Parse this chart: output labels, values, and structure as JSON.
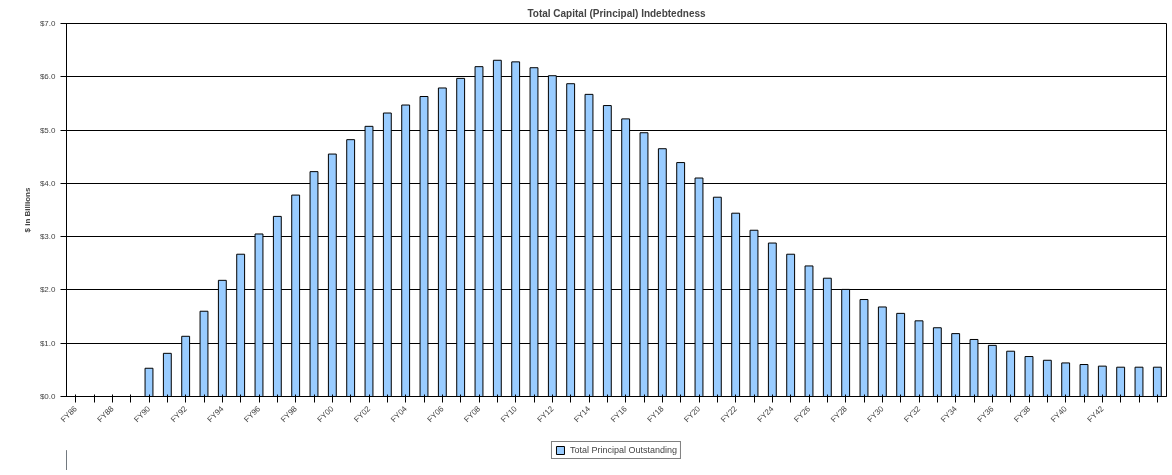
{
  "chart_data": {
    "type": "bar",
    "title": "Total Capital (Principal) Indebtedness",
    "ylabel": "$ in Billions",
    "categories": [
      "FY86",
      null,
      "FY88",
      null,
      "FY90",
      null,
      "FY92",
      null,
      "FY94",
      null,
      "FY96",
      null,
      "FY98",
      null,
      "FY00",
      null,
      "FY02",
      null,
      "FY04",
      null,
      "FY06",
      null,
      "FY08",
      null,
      "FY10",
      null,
      "FY12",
      null,
      "FY14",
      null,
      "FY16",
      null,
      "FY18",
      null,
      "FY20",
      null,
      "FY22",
      null,
      "FY24",
      null,
      "FY26",
      null,
      "FY28",
      null,
      "FY30",
      null,
      "FY32",
      null,
      "FY34",
      null,
      "FY36",
      null,
      "FY38",
      null,
      "FY40",
      null,
      "FY42",
      null,
      null,
      null
    ],
    "series": [
      {
        "name": "Total Principal Outstanding",
        "color": "#99ccff",
        "values": [
          null,
          null,
          null,
          null,
          0.53,
          0.81,
          1.13,
          1.6,
          2.18,
          2.67,
          3.05,
          3.38,
          3.78,
          4.22,
          4.55,
          4.82,
          5.07,
          5.32,
          5.47,
          5.63,
          5.79,
          5.97,
          6.19,
          6.31,
          6.28,
          6.17,
          6.02,
          5.87,
          5.67,
          5.46,
          5.21,
          4.95,
          4.65,
          4.39,
          4.1,
          3.74,
          3.44,
          3.12,
          2.88,
          2.67,
          2.45,
          2.22,
          2.01,
          1.82,
          1.68,
          1.56,
          1.42,
          1.29,
          1.18,
          1.07,
          0.96,
          0.85,
          0.75,
          0.68,
          0.63,
          0.6,
          0.57,
          0.55,
          0.55,
          0.55
        ]
      }
    ],
    "ylim": [
      0,
      7
    ],
    "yticks": [
      {
        "value": 0,
        "label": "$0.0"
      },
      {
        "value": 1,
        "label": "$1.0"
      },
      {
        "value": 2,
        "label": "$2.0"
      },
      {
        "value": 3,
        "label": "$3.0"
      },
      {
        "value": 4,
        "label": "$4.0"
      },
      {
        "value": 5,
        "label": "$5.0"
      },
      {
        "value": 6,
        "label": "$6.0"
      },
      {
        "value": 7,
        "label": "$7.0"
      }
    ],
    "grid": "y",
    "legend": "bottom"
  }
}
